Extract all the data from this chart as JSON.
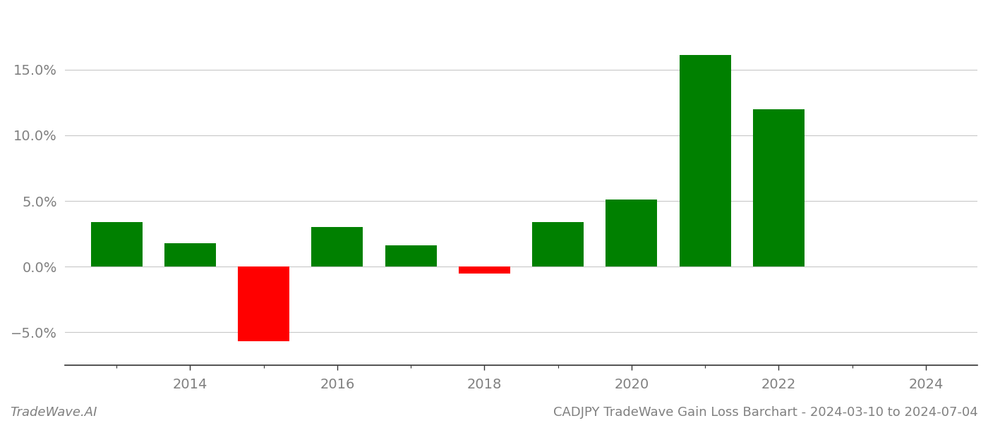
{
  "years": [
    2013,
    2014,
    2015,
    2016,
    2017,
    2018,
    2019,
    2020,
    2021,
    2022
  ],
  "values": [
    0.034,
    0.018,
    -0.057,
    0.03,
    0.016,
    -0.005,
    0.034,
    0.051,
    0.161,
    0.12
  ],
  "colors": [
    "#008000",
    "#008000",
    "#ff0000",
    "#008000",
    "#008000",
    "#ff0000",
    "#008000",
    "#008000",
    "#008000",
    "#008000"
  ],
  "xlabel_ticks": [
    2013,
    2014,
    2015,
    2016,
    2017,
    2018,
    2019,
    2020,
    2021,
    2022,
    2023,
    2024
  ],
  "xlabel_major_ticks": [
    2014,
    2016,
    2018,
    2020,
    2022,
    2024
  ],
  "xlim": [
    2012.3,
    2024.7
  ],
  "ylim": [
    -0.075,
    0.195
  ],
  "yticks": [
    -0.05,
    0.0,
    0.05,
    0.1,
    0.15
  ],
  "ytick_labels": [
    "−5.0%",
    "0.0%",
    "5.0%",
    "10.0%",
    "15.0%"
  ],
  "footer_left": "TradeWave.AI",
  "footer_right": "CADJPY TradeWave Gain Loss Barchart - 2024-03-10 to 2024-07-04",
  "background_color": "#ffffff",
  "bar_width": 0.7,
  "grid_color": "#c8c8c8",
  "axis_color": "#333333",
  "text_color": "#808080",
  "tick_label_fontsize": 14,
  "footer_fontsize": 13
}
